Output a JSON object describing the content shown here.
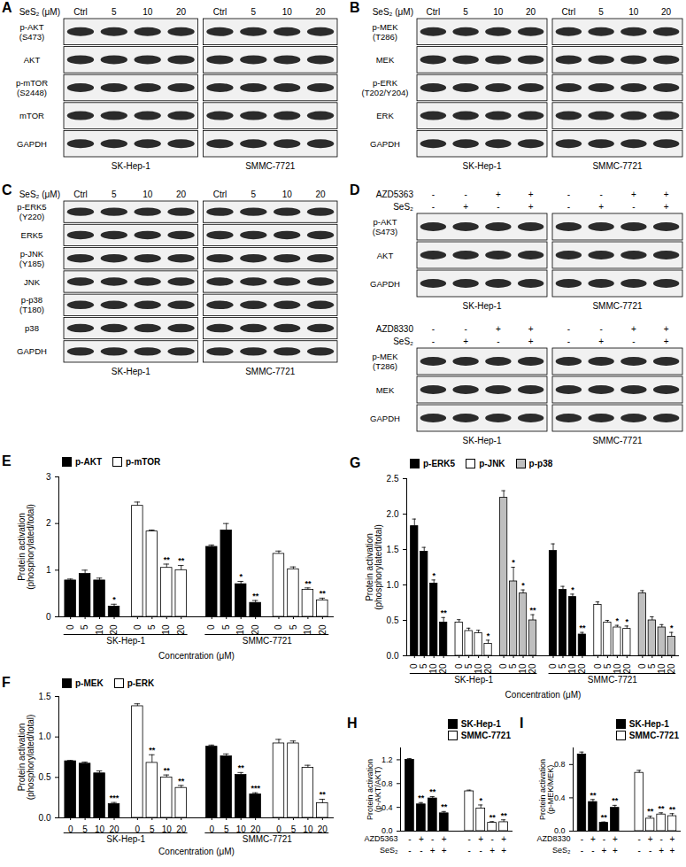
{
  "blots": [
    {
      "panel": "A",
      "sections": [
        {
          "header": [
            {
              "name": "SeS₂ (μM)",
              "values": [
                "Ctrl",
                "5",
                "10",
                "20"
              ]
            }
          ],
          "proteins": [
            [
              "p-AKT",
              "(S473)"
            ],
            [
              "AKT"
            ],
            [
              "p-mTOR",
              "(S2448)"
            ],
            [
              "mTOR"
            ],
            [
              "GAPDH"
            ]
          ],
          "cell_lines": [
            "SK-Hep-1",
            "SMMC-7721"
          ]
        }
      ]
    },
    {
      "panel": "B",
      "sections": [
        {
          "header": [
            {
              "name": "SeS₂ (μM)",
              "values": [
                "Ctrl",
                "5",
                "10",
                "20"
              ]
            }
          ],
          "proteins": [
            [
              "p-MEK",
              "(T286)"
            ],
            [
              "MEK"
            ],
            [
              "p-ERK",
              "(T202/Y204)"
            ],
            [
              "ERK"
            ],
            [
              "GAPDH"
            ]
          ],
          "cell_lines": [
            "SK-Hep-1",
            "SMMC-7721"
          ]
        }
      ]
    },
    {
      "panel": "C",
      "sections": [
        {
          "header": [
            {
              "name": "SeS₂ (μM)",
              "values": [
                "Ctrl",
                "5",
                "10",
                "20"
              ]
            }
          ],
          "proteins": [
            [
              "p-ERK5",
              "(Y220)"
            ],
            [
              "ERK5"
            ],
            [
              "p-JNK",
              "(Y185)"
            ],
            [
              "JNK"
            ],
            [
              "p-p38",
              "(T180)"
            ],
            [
              "p38"
            ],
            [
              "GAPDH"
            ]
          ],
          "cell_lines": [
            "SK-Hep-1",
            "SMMC-7721"
          ]
        }
      ]
    },
    {
      "panel": "D",
      "sections": [
        {
          "header": [
            {
              "name": "AZD5363",
              "values": [
                "-",
                "-",
                "+",
                "+"
              ]
            },
            {
              "name": "SeS₂",
              "values": [
                "-",
                "+",
                "-",
                "+"
              ]
            }
          ],
          "proteins": [
            [
              "p-AKT",
              "(S473)"
            ],
            [
              "AKT"
            ],
            [
              "GAPDH"
            ]
          ],
          "cell_lines": [
            "SK-Hep-1",
            "SMMC-7721"
          ]
        },
        {
          "header": [
            {
              "name": "AZD8330",
              "values": [
                "-",
                "-",
                "+",
                "+"
              ]
            },
            {
              "name": "SeS₂",
              "values": [
                "-",
                "+",
                "-",
                "+"
              ]
            }
          ],
          "proteins": [
            [
              "p-MEK",
              "(T286)"
            ],
            [
              "MEK"
            ],
            [
              "GAPDH"
            ]
          ],
          "cell_lines": [
            "SK-Hep-1",
            "SMMC-7721"
          ]
        }
      ]
    }
  ],
  "chart_data": [
    {
      "panel": "E",
      "type": "bar",
      "y_label": [
        "Protein activation",
        "(phosphorylated/total)"
      ],
      "x_label": "Concentration (μM)",
      "groups": [
        "SK-Hep-1",
        "SMMC-7721"
      ],
      "categories": [
        "0",
        "5",
        "10",
        "20"
      ],
      "series": [
        {
          "name": "p-AKT",
          "color": "#000000",
          "values": [
            [
              0.78,
              0.92,
              0.78,
              0.22
            ],
            [
              1.5,
              1.85,
              0.7,
              0.3
            ]
          ],
          "errors": [
            [
              0.03,
              0.08,
              0.05,
              0.05
            ],
            [
              0.04,
              0.15,
              0.06,
              0.05
            ]
          ],
          "significance": [
            [
              null,
              null,
              null,
              "*"
            ],
            [
              null,
              null,
              "*",
              "**"
            ]
          ]
        },
        {
          "name": "p-mTOR",
          "color": "#ffffff",
          "values": [
            [
              2.38,
              1.83,
              1.05,
              1.0
            ],
            [
              1.35,
              1.02,
              0.58,
              0.35
            ]
          ],
          "errors": [
            [
              0.08,
              0.03,
              0.08,
              0.1
            ],
            [
              0.06,
              0.05,
              0.04,
              0.05
            ]
          ],
          "significance": [
            [
              null,
              null,
              "**",
              "**"
            ],
            [
              null,
              null,
              "**",
              "**"
            ]
          ]
        }
      ],
      "ylim": [
        0,
        3
      ],
      "yticks": [
        0,
        1,
        2,
        3
      ],
      "legend": "top-left"
    },
    {
      "panel": "F",
      "type": "bar",
      "y_label": [
        "Protein activation",
        "(phosphorylated/total)"
      ],
      "x_label": "Concentration (μM)",
      "groups": [
        "SK-Hep-1",
        "SMMC-7721"
      ],
      "categories": [
        "0",
        "5",
        "10",
        "20"
      ],
      "series": [
        {
          "name": "p-MEK",
          "color": "#000000",
          "values": [
            [
              0.7,
              0.67,
              0.55,
              0.17
            ],
            [
              0.88,
              0.76,
              0.53,
              0.29
            ]
          ],
          "errors": [
            [
              0.01,
              0.02,
              0.03,
              0.02
            ],
            [
              0.02,
              0.03,
              0.03,
              0.02
            ]
          ],
          "significance": [
            [
              null,
              null,
              null,
              "***"
            ],
            [
              null,
              null,
              "**",
              "***"
            ]
          ]
        },
        {
          "name": "p-ERK",
          "color": "#ffffff",
          "values": [
            [
              1.38,
              0.68,
              0.5,
              0.37
            ],
            [
              0.92,
              0.92,
              0.62,
              0.18
            ]
          ],
          "errors": [
            [
              0.03,
              0.1,
              0.03,
              0.03
            ],
            [
              0.05,
              0.03,
              0.03,
              0.05
            ]
          ],
          "significance": [
            [
              null,
              "**",
              "**",
              "**"
            ],
            [
              null,
              null,
              null,
              "**"
            ]
          ]
        }
      ],
      "ylim": [
        0,
        1.5
      ],
      "yticks": [
        {
          "value": 0,
          "label": "0.0"
        },
        0.5,
        {
          "value": 1,
          "label": "1.0"
        },
        1.5
      ],
      "legend": "top-left"
    },
    {
      "panel": "G",
      "type": "bar",
      "y_label": [
        "Protein activation",
        "(phosphorylated/total)"
      ],
      "x_label": "Concentration (μM)",
      "groups": [
        "SK-Hep-1",
        "SMMC-7721"
      ],
      "categories": [
        "0",
        "5",
        "10",
        "20"
      ],
      "series": [
        {
          "name": "p-ERK5",
          "color": "#000000",
          "values": [
            [
              1.83,
              1.47,
              1.02,
              0.47
            ],
            [
              1.48,
              0.93,
              0.83,
              0.3
            ]
          ],
          "errors": [
            [
              0.1,
              0.06,
              0.05,
              0.07
            ],
            [
              0.1,
              0.05,
              0.04,
              0.03
            ]
          ],
          "significance": [
            [
              null,
              null,
              "*",
              "**"
            ],
            [
              null,
              null,
              "*",
              "**"
            ]
          ]
        },
        {
          "name": "p-JNK",
          "color": "#ffffff",
          "values": [
            [
              0.47,
              0.35,
              0.32,
              0.17
            ],
            [
              0.72,
              0.47,
              0.4,
              0.38
            ]
          ],
          "errors": [
            [
              0.04,
              0.04,
              0.04,
              0.05
            ],
            [
              0.04,
              0.03,
              0.03,
              0.04
            ]
          ],
          "significance": [
            [
              null,
              null,
              null,
              "*"
            ],
            [
              null,
              null,
              "*",
              "*"
            ]
          ]
        },
        {
          "name": "p-p38",
          "color": "#bfbfbf",
          "values": [
            [
              2.23,
              1.05,
              0.88,
              0.5
            ],
            [
              0.88,
              0.5,
              0.4,
              0.27
            ]
          ],
          "errors": [
            [
              0.1,
              0.2,
              0.05,
              0.08
            ],
            [
              0.04,
              0.05,
              0.04,
              0.06
            ]
          ],
          "significance": [
            [
              null,
              "*",
              "*",
              "**"
            ],
            [
              null,
              null,
              null,
              "*"
            ]
          ]
        }
      ],
      "ylim": [
        0,
        2.5
      ],
      "yticks": [
        {
          "value": 0,
          "label": "0.0"
        },
        0.5,
        {
          "value": 1,
          "label": "1.0"
        },
        1.5,
        {
          "value": 2,
          "label": "2.0"
        },
        2.5
      ],
      "legend": "top-left"
    },
    {
      "panel": "H",
      "type": "bar",
      "y_label": [
        "Protein activation",
        "(p-AKT/AKT)"
      ],
      "categories": [
        null,
        null,
        null,
        null
      ],
      "treatments": [
        {
          "name": "AZD5363",
          "values": [
            "-",
            "+",
            "-",
            "+"
          ]
        },
        {
          "name": "SeS₂",
          "values": [
            "-",
            "-",
            "+",
            "+"
          ]
        }
      ],
      "series": [
        {
          "name": "SK-Hep-1",
          "color": "#000000",
          "values": [
            1.2,
            0.45,
            0.55,
            0.3
          ],
          "errors": [
            0.02,
            0.03,
            0.03,
            0.03
          ],
          "significance": [
            null,
            "**",
            "**",
            "**"
          ]
        },
        {
          "name": "SMMC-7721",
          "color": "#ffffff",
          "values": [
            0.67,
            0.38,
            0.14,
            0.15
          ],
          "errors": [
            0.02,
            0.06,
            0.02,
            0.04
          ],
          "significance": [
            null,
            "*",
            "**",
            "**"
          ]
        }
      ],
      "ylim": [
        0,
        1.4
      ],
      "yticks": [
        {
          "value": 0,
          "label": "0.0"
        },
        0.4,
        0.8,
        1.2
      ],
      "tick_labels": "y",
      "legend": "top-right"
    },
    {
      "panel": "I",
      "type": "bar",
      "y_label": [
        "Protein activation",
        "(p-MEK/MEK)"
      ],
      "categories": [
        null,
        null,
        null,
        null
      ],
      "treatments": [
        {
          "name": "AZD8330",
          "values": [
            "-",
            "+",
            "-",
            "+"
          ]
        },
        {
          "name": "SeS₂",
          "values": [
            "-",
            "-",
            "+",
            "+"
          ]
        }
      ],
      "series": [
        {
          "name": "SK-Hep-1",
          "color": "#000000",
          "values": [
            0.92,
            0.35,
            0.1,
            0.28
          ],
          "errors": [
            0.03,
            0.03,
            0.01,
            0.03
          ],
          "significance": [
            null,
            "**",
            "**",
            "**"
          ]
        },
        {
          "name": "SMMC-7721",
          "color": "#ffffff",
          "values": [
            0.7,
            0.15,
            0.2,
            0.18
          ],
          "errors": [
            0.03,
            0.03,
            0.02,
            0.03
          ],
          "significance": [
            null,
            "**",
            "**",
            "**"
          ]
        }
      ],
      "ylim": [
        0,
        1.0
      ],
      "yticks": [
        {
          "value": 0,
          "label": "0.0"
        },
        0.4,
        0.8
      ],
      "tick_labels": "y",
      "legend": "top-right"
    }
  ]
}
